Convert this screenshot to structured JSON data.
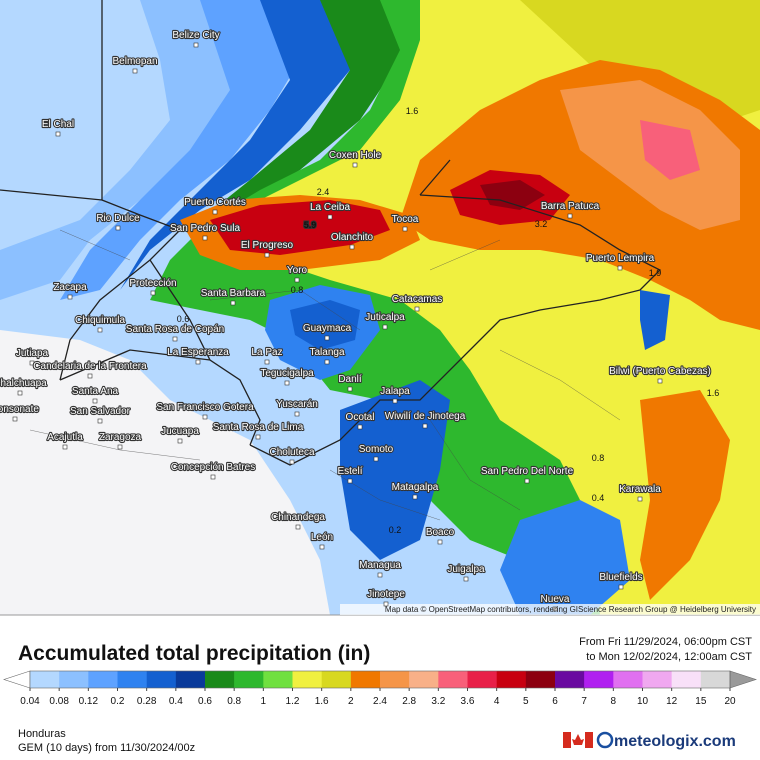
{
  "map": {
    "cities": [
      "Belize City",
      "Belmopan",
      "El Chal",
      "Coxen Hole",
      "Puerto Cortés",
      "La Ceiba",
      "Rio Dulce",
      "San Pedro Sula",
      "Tocoa",
      "Barra Patuca",
      "Olanchito",
      "El Progreso",
      "Puerto Lempira",
      "Yoro",
      "Zacapa",
      "Protección",
      "Santa Barbara",
      "Catacamas",
      "Chiquimula",
      "Guaymaca",
      "Santa Rosa de Copán",
      "Juticalpa",
      "Jutiapa",
      "Candelaria de la Frontera",
      "La Esperanza",
      "La Paz",
      "Talanga",
      "Bilwi (Puerto Cabezas)",
      "Tegucigalpa",
      "Danlí",
      "Santa Ana",
      "Chalchuapa",
      "Jalapa",
      "San Salvador",
      "Sonsonate",
      "Yuscarán",
      "San Francisco Gotera",
      "Wiwilí de Jinotega",
      "Ocotal",
      "Acajutla",
      "Zaragoza",
      "Jucuapa",
      "Santa Rosa de Lima",
      "Choluteca",
      "Somoto",
      "Concepción Batres",
      "San Pedro Del Norte",
      "Estelí",
      "Karawala",
      "Matagalpa",
      "Chinandega",
      "Boaco",
      "León",
      "Managua",
      "Juigalpa",
      "Bluefields",
      "Jinotepe",
      "Nueva"
    ],
    "contour_labels": [
      1.6,
      2.4,
      5.9,
      3.2,
      1.9,
      1.6,
      0.8,
      0.4,
      0.2,
      0.6,
      0.8
    ],
    "attribution": "Map data © OpenStreetMap contributors, rendering GIScience Research Group @ Heidelberg University"
  },
  "legend": {
    "title": "Accumulated total precipitation (in)",
    "levels": [
      0.04,
      0.08,
      0.12,
      0.2,
      0.28,
      0.4,
      0.6,
      0.8,
      1,
      1.2,
      1.6,
      2,
      2.4,
      2.8,
      3.2,
      3.6,
      4,
      5,
      6,
      7,
      8,
      10,
      12,
      15,
      20
    ],
    "colors": [
      "#b4d8ff",
      "#8cc0ff",
      "#5ea2ff",
      "#2f82f0",
      "#1460d0",
      "#0a3a9a",
      "#1a8a1a",
      "#2eb82e",
      "#70e040",
      "#f0f040",
      "#d8d820",
      "#f07800",
      "#f59548",
      "#f8b088",
      "#f8607a",
      "#e82048",
      "#c80010",
      "#8c0010",
      "#6a0aa0",
      "#b020f0",
      "#e070f0",
      "#f0a8f0",
      "#f8e0f8",
      "#d8d8d8"
    ]
  },
  "header": {
    "from": "From Fri 11/29/2024, 06:00pm CST",
    "to": "to Mon 12/02/2024, 12:00am CST"
  },
  "footer": {
    "region": "Honduras",
    "model": "GEM (10 days) from 11/30/2024/00z",
    "brand": "meteologix.com"
  }
}
